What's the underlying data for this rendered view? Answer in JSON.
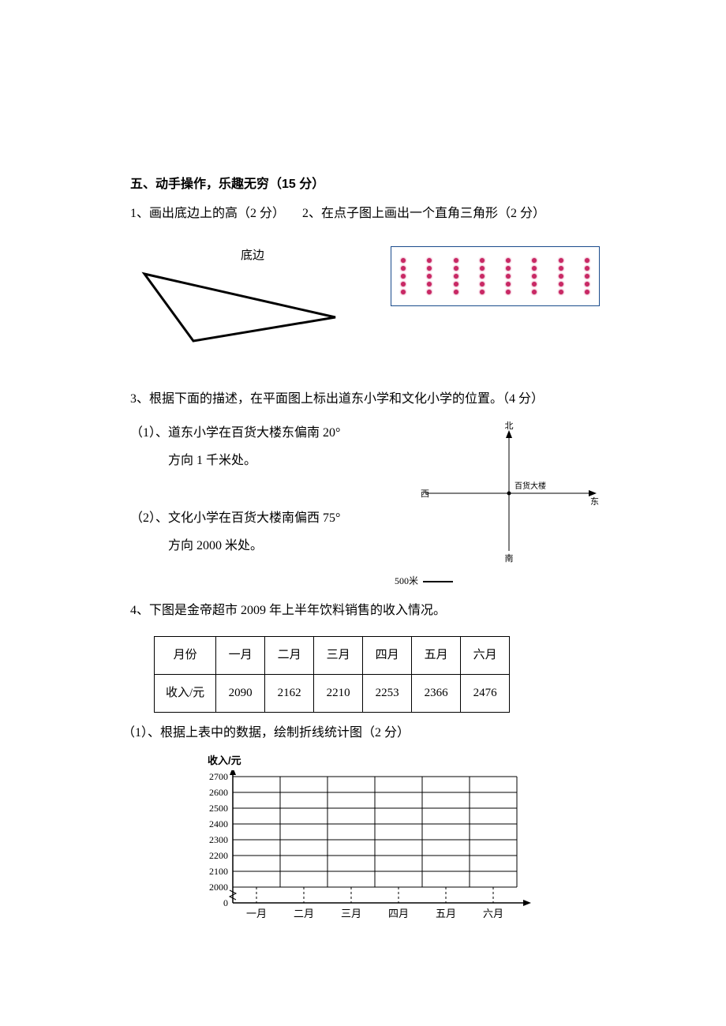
{
  "section": {
    "title": "五、动手操作，乐趣无穷（15 分）"
  },
  "q1": {
    "text": "1、画出底边上的高（2 分）"
  },
  "q2": {
    "text": "2、在点子图上画出一个直角三角形（2 分）"
  },
  "triangle": {
    "label": "底边",
    "stroke": "#000000",
    "stroke_width": 2
  },
  "dot_grid": {
    "rows": 5,
    "cols": 8,
    "dot_color": "#c82864",
    "border_color": "#1a4b8c"
  },
  "q3": {
    "text": "3、根据下面的描述，在平面图上标出道东小学和文化小学的位置。（4 分）",
    "sub1_line1": "（1）、道东小学在百货大楼东偏南 20°",
    "sub1_line2": "方向 1 千米处。",
    "sub2_line1": "（2）、文化小学在百货大楼南偏西 75°",
    "sub2_line2": "方向 2000 米处。"
  },
  "compass": {
    "north": "北",
    "south": "南",
    "east": "东",
    "west": "西",
    "center": "百货大楼",
    "scale_label": "500米"
  },
  "q4": {
    "text": "4、下图是金帝超市 2009 年上半年饮料销售的收入情况。",
    "sub1": "（1）、根据上表中的数据，绘制折线统计图（2 分）"
  },
  "table": {
    "headers": [
      "月份",
      "一月",
      "二月",
      "三月",
      "四月",
      "五月",
      "六月"
    ],
    "row_label": "收入/元",
    "values": [
      2090,
      2162,
      2210,
      2253,
      2366,
      2476
    ]
  },
  "chart": {
    "type": "line-grid",
    "y_label": "收入/元",
    "y_ticks": [
      0,
      2000,
      2100,
      2200,
      2300,
      2400,
      2500,
      2600,
      2700
    ],
    "x_labels": [
      "一月",
      "二月",
      "三月",
      "四月",
      "五月",
      "六月"
    ],
    "grid_color": "#000000",
    "axis_color": "#000000",
    "background": "#ffffff",
    "tick_fontsize": 12
  }
}
